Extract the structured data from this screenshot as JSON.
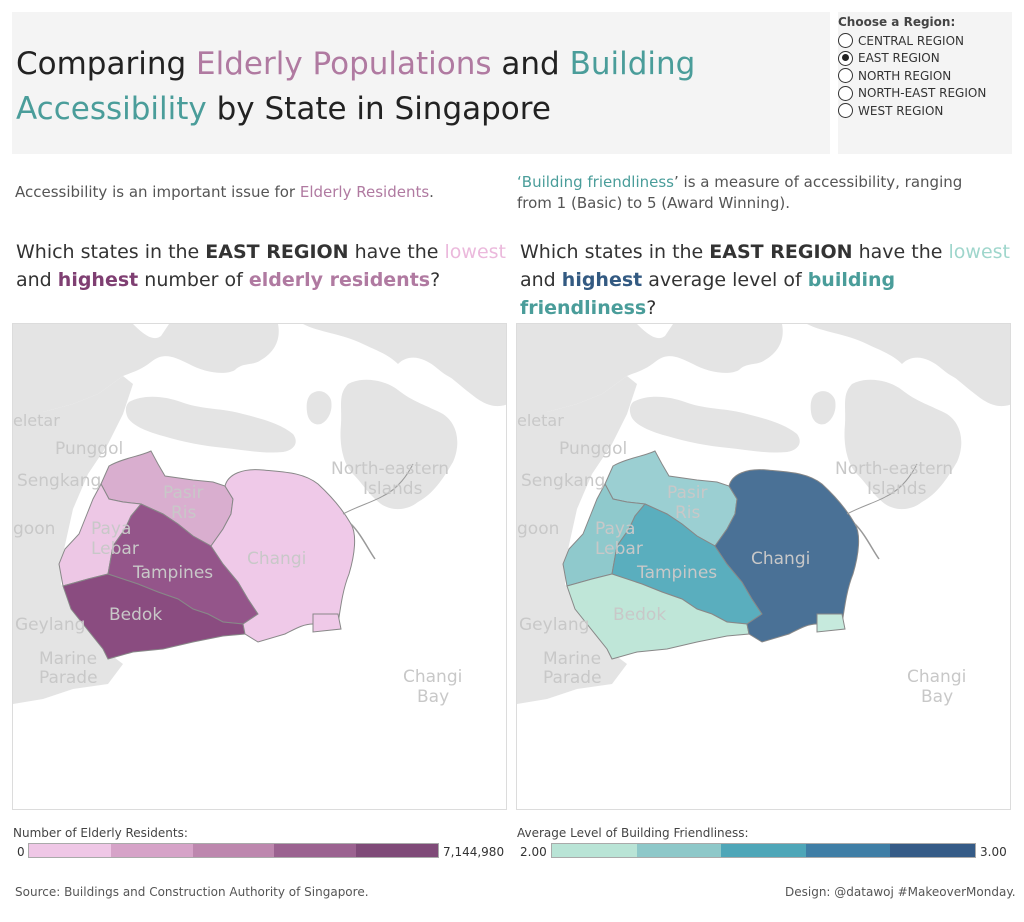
{
  "title": {
    "part1": "Comparing ",
    "part2": "Elderly Populations",
    "part3": " and ",
    "part4": "Building",
    "part5": "Accessibility",
    "part6": " by State in Singapore"
  },
  "region_selector": {
    "title": "Choose a Region:",
    "options": [
      "CENTRAL REGION",
      "EAST REGION",
      "NORTH REGION",
      "NORTH-EAST REGION",
      "WEST REGION"
    ],
    "selected": "EAST REGION"
  },
  "left": {
    "desc_part1": "Accessibility is an important issue for ",
    "desc_part2": "Elderly Residents",
    "desc_part3": ".",
    "q1": "Which states in the ",
    "q2": "EAST REGION",
    "q3": " have the ",
    "q4": "lowest",
    "q5": "and ",
    "q6": "highest",
    "q7": " number of ",
    "q8": "elderly residents",
    "q9": "?",
    "legend_title": "Number of Elderly Residents:",
    "legend_min": "0",
    "legend_max": "7,144,980",
    "legend_colors": [
      "#efc7e6",
      "#d6a3c8",
      "#bd87ae",
      "#9b6290",
      "#7f4a78"
    ],
    "fills": {
      "pasir_ris": "#d9aecf",
      "paya_lebar": "#edc7e5",
      "tampines": "#94558a",
      "bedok": "#8a4c80",
      "changi": "#efc9e8",
      "changi_bay_state": "#efc9e8"
    }
  },
  "right": {
    "desc_part1": "‘",
    "desc_part2": "Building friendliness",
    "desc_part3": "’ is a measure of accessibility, ranging from 1 (Basic) to 5 (Award Winning).",
    "q1": "Which states in the ",
    "q2": "EAST REGION",
    "q3": " have the ",
    "q4": "lowest",
    "q5": "and ",
    "q6": "highest",
    "q7": " average level of ",
    "q8": "building friendliness",
    "q9": "?",
    "legend_title": "Average Level of Building Friendliness:",
    "legend_min": "2.00",
    "legend_max": "3.00",
    "legend_colors": [
      "#b9e4d6",
      "#8ec8c9",
      "#4ea6b8",
      "#3f7ea6",
      "#355b87"
    ],
    "fills": {
      "pasir_ris": "#9bcfd2",
      "paya_lebar": "#8fc9cc",
      "tampines": "#5aaebe",
      "bedok": "#bfe6d8",
      "changi": "#4a7196",
      "changi_bay_state": "#c6eadd"
    }
  },
  "map_labels": {
    "seletar": "eletar",
    "punggol": "Punggol",
    "sengkang": "Sengkang",
    "hougang": "goon",
    "pasir_ris_1": "Pasir",
    "pasir_ris_2": "Ris",
    "paya_1": "Paya",
    "paya_2": "Lebar",
    "tampines": "Tampines",
    "changi": "Changi",
    "bedok": "Bedok",
    "geylang": "Geylang",
    "marine_1": "Marine",
    "marine_2": "Parade",
    "ne_islands_1": "North-eastern",
    "ne_islands_2": "Islands",
    "changi_bay_1": "Changi",
    "changi_bay_2": "Bay"
  },
  "footer": {
    "source": "Source: Buildings and Construction Authority of Singapore.",
    "design": "Design: @datawoj #MakeoverMonday."
  }
}
